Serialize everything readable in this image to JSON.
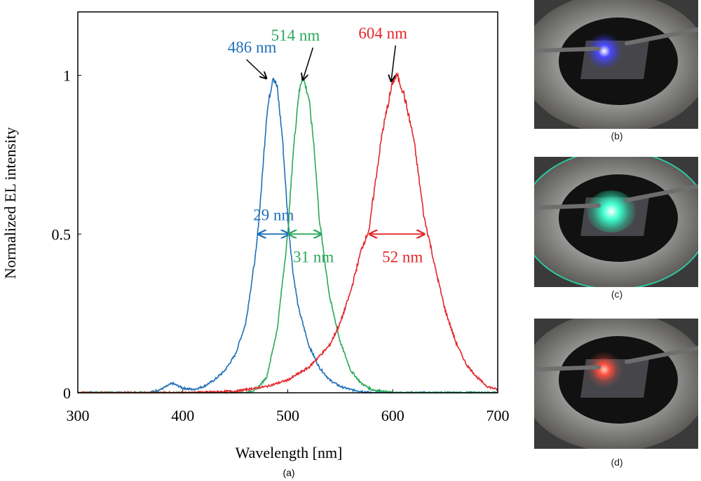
{
  "chart_data": {
    "type": "line",
    "xlabel": "Wavelength [nm]",
    "ylabel": "Normalized EL intensity",
    "xlim": [
      300,
      700
    ],
    "ylim": [
      0,
      1.2
    ],
    "xticks": [
      300,
      400,
      500,
      600,
      700
    ],
    "yticks": [
      0,
      0.5,
      1
    ],
    "ytick_labels": [
      "0",
      "0.5",
      "1"
    ],
    "grid": false,
    "legend": null,
    "caption": "(a)",
    "series": [
      {
        "color": "#1f70b8",
        "x": [
          300,
          320,
          340,
          360,
          370,
          380,
          390,
          400,
          410,
          420,
          430,
          440,
          450,
          460,
          470,
          475,
          480,
          486,
          490,
          495,
          500,
          505,
          510,
          520,
          530,
          540,
          550,
          560,
          580,
          600,
          650,
          700
        ],
        "y": [
          0,
          0,
          0,
          0,
          0.002,
          0.012,
          0.03,
          0.015,
          0.01,
          0.02,
          0.04,
          0.07,
          0.12,
          0.22,
          0.45,
          0.65,
          0.88,
          1.0,
          0.96,
          0.8,
          0.55,
          0.38,
          0.27,
          0.15,
          0.08,
          0.04,
          0.02,
          0.01,
          0,
          0,
          0,
          0
        ]
      },
      {
        "color": "#2ba85a",
        "x": [
          300,
          400,
          460,
          470,
          480,
          490,
          495,
          500,
          505,
          510,
          514,
          520,
          525,
          530,
          535,
          540,
          550,
          560,
          570,
          580,
          600,
          700
        ],
        "y": [
          0,
          0,
          0,
          0.01,
          0.05,
          0.2,
          0.35,
          0.5,
          0.75,
          0.93,
          1.0,
          0.93,
          0.78,
          0.55,
          0.42,
          0.3,
          0.16,
          0.07,
          0.03,
          0.01,
          0,
          0
        ]
      },
      {
        "color": "#e3262b",
        "x": [
          300,
          400,
          450,
          480,
          500,
          520,
          540,
          550,
          560,
          570,
          578,
          580,
          590,
          600,
          604,
          610,
          620,
          630,
          635,
          640,
          650,
          660,
          670,
          680,
          690,
          700
        ],
        "y": [
          0,
          0,
          0.005,
          0.02,
          0.04,
          0.08,
          0.15,
          0.22,
          0.32,
          0.45,
          0.52,
          0.58,
          0.82,
          0.98,
          1.0,
          0.95,
          0.8,
          0.55,
          0.48,
          0.4,
          0.26,
          0.16,
          0.09,
          0.05,
          0.02,
          0.01
        ]
      }
    ],
    "annotations": [
      {
        "text": "486 nm",
        "color": "#1f70b8",
        "peak_x": 486
      },
      {
        "text": "514 nm",
        "color": "#2ba85a",
        "peak_x": 514
      },
      {
        "text": "604 nm",
        "color": "#e3262b",
        "peak_x": 604
      },
      {
        "text": "29 nm",
        "color": "#1f70b8",
        "fwhm": [
          472,
          501
        ]
      },
      {
        "text": "31 nm",
        "color": "#2ba85a",
        "fwhm": [
          501,
          532
        ]
      },
      {
        "text": "52 nm",
        "color": "#e3262b",
        "fwhm": [
          578,
          630
        ]
      }
    ]
  },
  "photos": [
    {
      "caption": "(b)",
      "glow_color": "#3a3aff"
    },
    {
      "caption": "(c)",
      "glow_color": "#30f0c0"
    },
    {
      "caption": "(d)",
      "glow_color": "#ff5040"
    }
  ]
}
